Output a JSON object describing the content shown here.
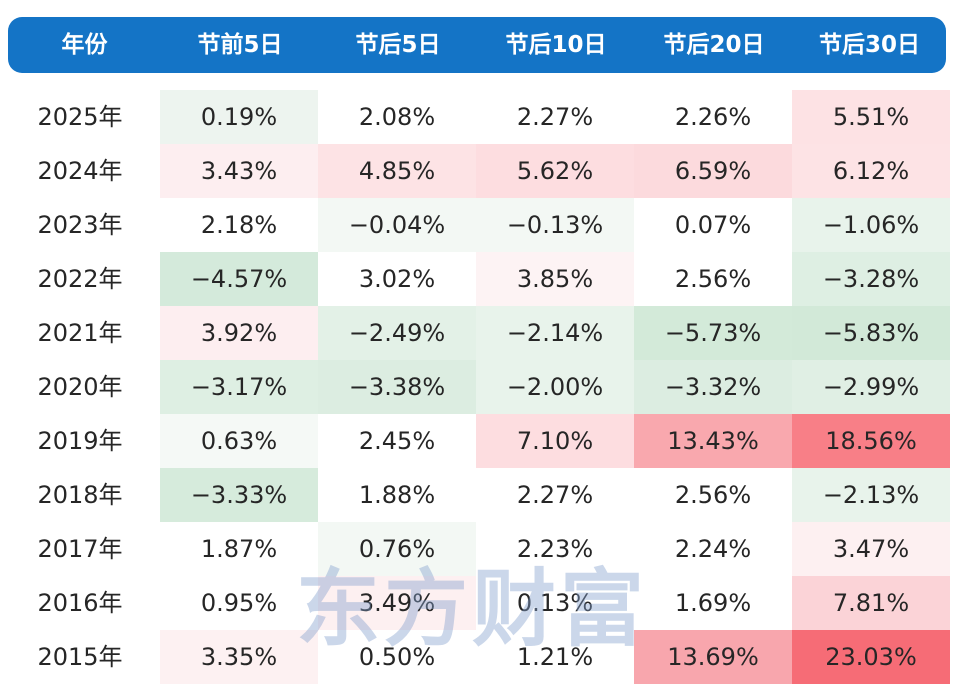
{
  "header": {
    "columns": [
      "年份",
      "节前5日",
      "节后5日",
      "节后10日",
      "节后20日",
      "节后30日"
    ]
  },
  "rows": [
    {
      "year": "2025年",
      "values": [
        "0.19%",
        "2.08%",
        "2.27%",
        "2.26%",
        "5.51%"
      ]
    },
    {
      "year": "2024年",
      "values": [
        "3.43%",
        "4.85%",
        "5.62%",
        "6.59%",
        "6.12%"
      ]
    },
    {
      "year": "2023年",
      "values": [
        "2.18%",
        "−0.04%",
        "−0.13%",
        "0.07%",
        "−1.06%"
      ]
    },
    {
      "year": "2022年",
      "values": [
        "−4.57%",
        "3.02%",
        "3.85%",
        "2.56%",
        "−3.28%"
      ]
    },
    {
      "year": "2021年",
      "values": [
        "3.92%",
        "−2.49%",
        "−2.14%",
        "−5.73%",
        "−5.83%"
      ]
    },
    {
      "year": "2020年",
      "values": [
        "−3.17%",
        "−3.38%",
        "−2.00%",
        "−3.32%",
        "−2.99%"
      ]
    },
    {
      "year": "2019年",
      "values": [
        "0.63%",
        "2.45%",
        "7.10%",
        "13.43%",
        "18.56%"
      ]
    },
    {
      "year": "2018年",
      "values": [
        "−3.33%",
        "1.88%",
        "2.27%",
        "2.56%",
        "−2.13%"
      ]
    },
    {
      "year": "2017年",
      "values": [
        "1.87%",
        "0.76%",
        "2.23%",
        "2.24%",
        "3.47%"
      ]
    },
    {
      "year": "2016年",
      "values": [
        "0.95%",
        "3.49%",
        "0.13%",
        "1.69%",
        "7.81%"
      ]
    },
    {
      "year": "2015年",
      "values": [
        "3.35%",
        "0.50%",
        "1.21%",
        "13.69%",
        "23.03%"
      ]
    }
  ],
  "cell_colors": [
    [
      "#edf4ef",
      "#ffffff",
      "#ffffff",
      "#ffffff",
      "#fde2e4"
    ],
    [
      "#fdeef0",
      "#fde3e5",
      "#fddde0",
      "#fcdadd",
      "#fde3e5"
    ],
    [
      "#ffffff",
      "#f3f8f4",
      "#f3f8f4",
      "#ffffff",
      "#e8f3eb"
    ],
    [
      "#d4eadb",
      "#ffffff",
      "#fdf3f4",
      "#ffffff",
      "#deefe3"
    ],
    [
      "#fdeef0",
      "#e3f1e7",
      "#e8f3eb",
      "#d3ead9",
      "#d2e9d8"
    ],
    [
      "#deefe3",
      "#dcede1",
      "#e8f3eb",
      "#dcede1",
      "#e0efe4"
    ],
    [
      "#f5f9f6",
      "#ffffff",
      "#fddde0",
      "#f9a8ae",
      "#f87f87"
    ],
    [
      "#d6ebdc",
      "#ffffff",
      "#ffffff",
      "#ffffff",
      "#e8f3eb"
    ],
    [
      "#ffffff",
      "#f3f8f4",
      "#ffffff",
      "#ffffff",
      "#fdf0f1"
    ],
    [
      "#ffffff",
      "#fdf0f1",
      "#ffffff",
      "#ffffff",
      "#fbd3d7"
    ],
    [
      "#fdf1f2",
      "#ffffff",
      "#ffffff",
      "#f8a6ad",
      "#f66c76"
    ]
  ],
  "watermark": "东方财富",
  "colors": {
    "header_bg": "#1474c6",
    "header_text": "#ffffff",
    "text": "#262626"
  }
}
